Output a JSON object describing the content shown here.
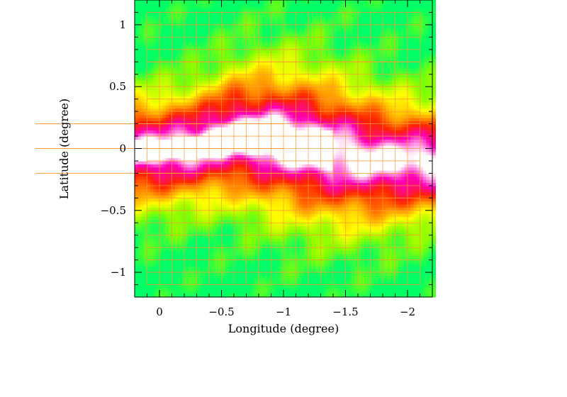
{
  "chart_data": {
    "type": "heatmap",
    "xlabel": "Longitude (degree)",
    "ylabel": "Latitude (degree)",
    "xlim": [
      0.2,
      -2.2
    ],
    "ylim": [
      -1.2,
      1.2
    ],
    "x_ticks": [
      {
        "value": 0,
        "label": "0"
      },
      {
        "value": -0.5,
        "label": "−0.5"
      },
      {
        "value": -1,
        "label": "−1"
      },
      {
        "value": -1.5,
        "label": "−1.5"
      },
      {
        "value": -2,
        "label": "−2"
      }
    ],
    "y_ticks": [
      {
        "value": 1,
        "label": "1"
      },
      {
        "value": 0.5,
        "label": "0.5"
      },
      {
        "value": 0,
        "label": "0"
      },
      {
        "value": -0.5,
        "label": "−0.5"
      },
      {
        "value": -1,
        "label": "−1"
      }
    ],
    "colormap": [
      "#00ff66",
      "#88ff00",
      "#ffff00",
      "#ff9900",
      "#ff2200",
      "#ff00bb",
      "#ffffff"
    ],
    "grid_color": "#ff9933",
    "survey_grid": {
      "upper_band": {
        "lon_min": -2.1,
        "lon_max": 0.1,
        "lat_min": 0.7,
        "lat_max": 1.1,
        "step": 0.1
      },
      "central_block": {
        "lon_min": -2.1,
        "lon_max": 0.1,
        "lat_min": -0.9,
        "lat_max": 0.7,
        "step": 0.1
      },
      "lower_band": {
        "lon_min": -2.1,
        "lon_max": 0.1,
        "lat_min": -1.1,
        "lat_max": -0.9,
        "step": 0.1
      },
      "extension_lines": [
        0.2,
        0.0,
        -0.2
      ]
    },
    "ridges": [
      {
        "lon": 0.0,
        "lat": -0.02,
        "half_width": 0.18
      },
      {
        "lon": -0.3,
        "lat": 0.02,
        "half_width": 0.2
      },
      {
        "lon": -0.6,
        "lat": 0.1,
        "half_width": 0.28
      },
      {
        "lon": -0.9,
        "lat": 0.08,
        "half_width": 0.36
      },
      {
        "lon": -1.2,
        "lat": 0.02,
        "half_width": 0.38
      },
      {
        "lon": -1.5,
        "lat": -0.05,
        "half_width": 0.35
      },
      {
        "lon": -1.8,
        "lat": -0.1,
        "half_width": 0.28
      },
      {
        "lon": -2.1,
        "lat": -0.1,
        "half_width": 0.22
      }
    ]
  }
}
